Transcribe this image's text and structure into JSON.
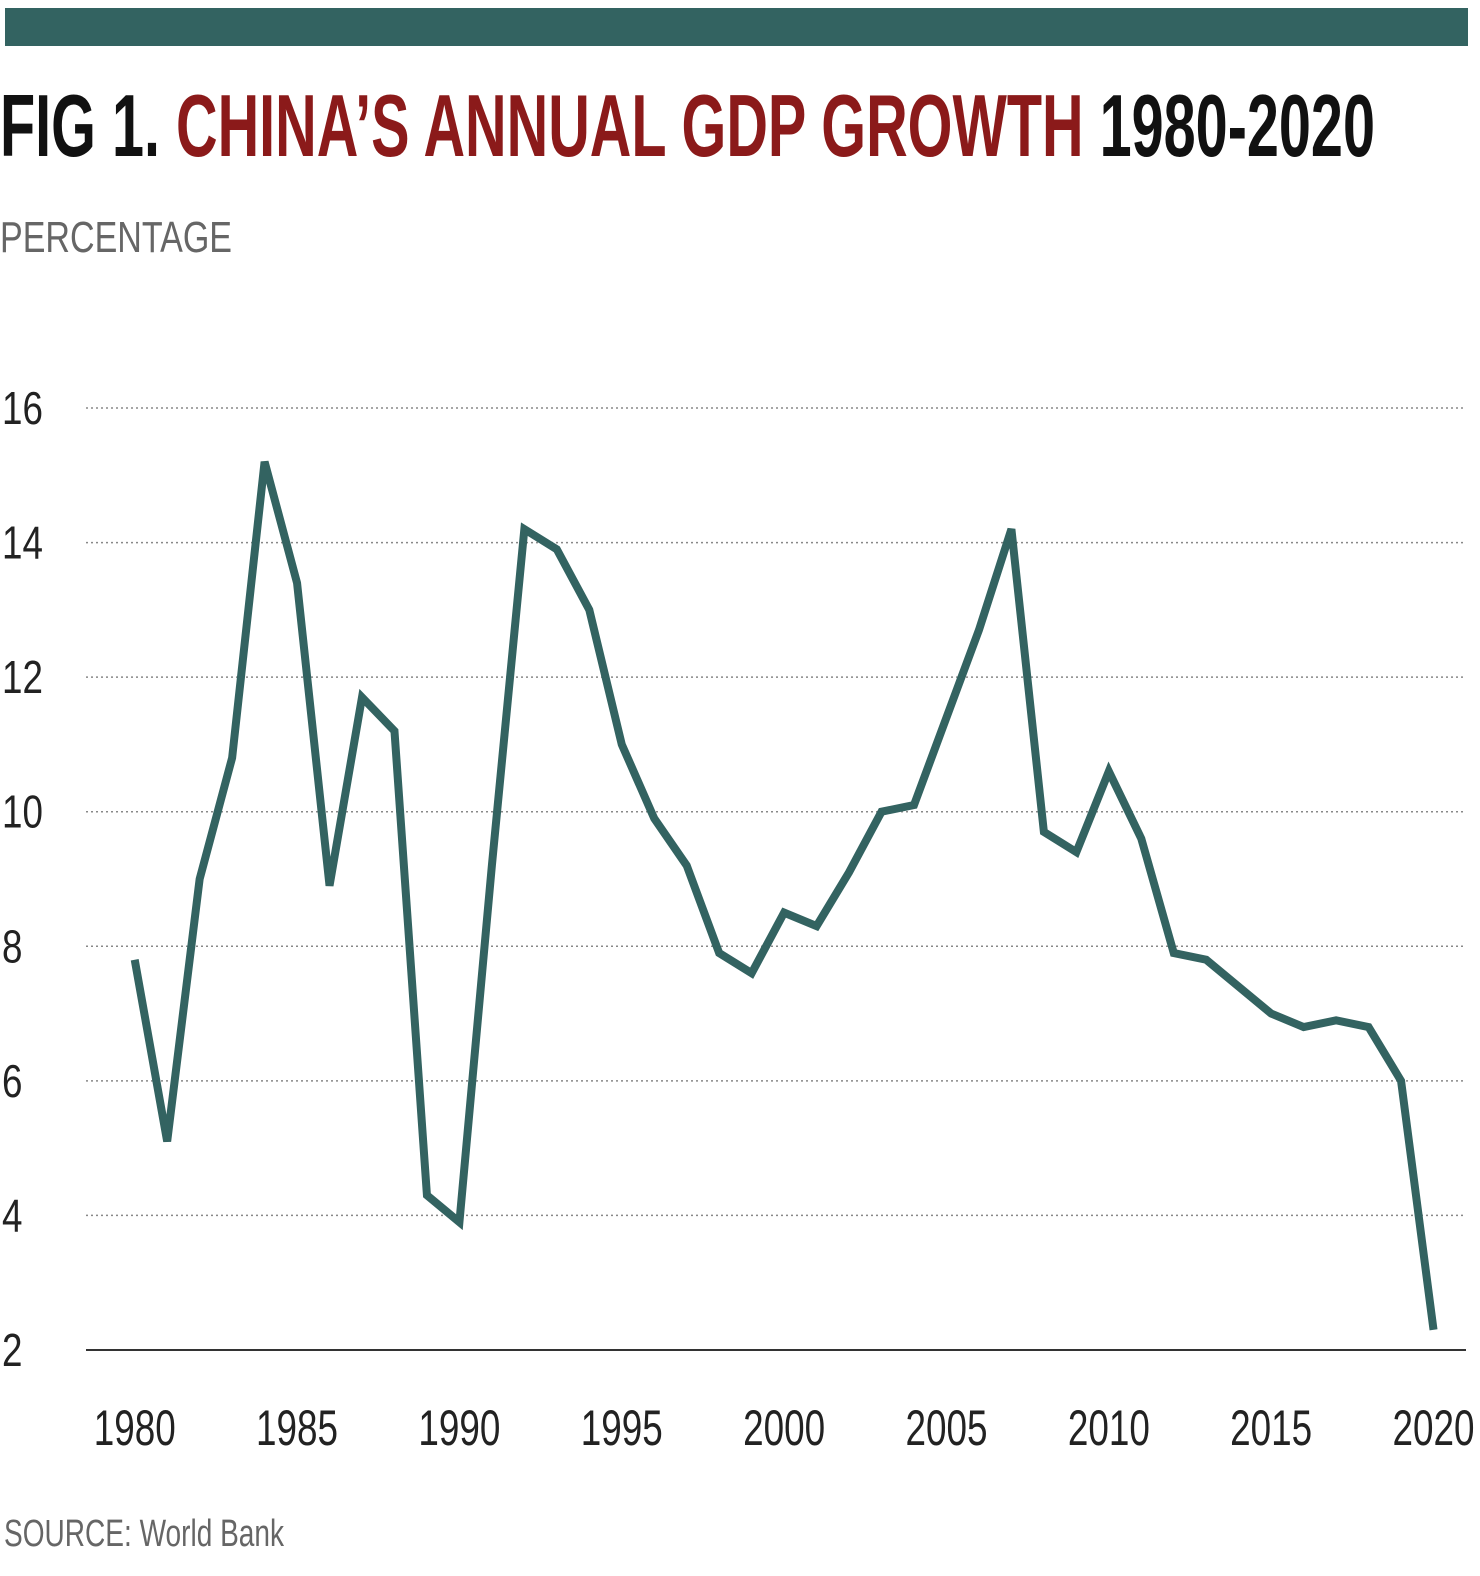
{
  "chart_data": {
    "type": "line",
    "title_parts": [
      "FIG 1.",
      "CHINA’S ANNUAL GDP GROWTH",
      "1980-2020"
    ],
    "y_axis_label": "PERCENTAGE",
    "source": "SOURCE: World Bank",
    "x": [
      1980,
      1981,
      1982,
      1983,
      1984,
      1985,
      1986,
      1987,
      1988,
      1989,
      1990,
      1991,
      1992,
      1993,
      1994,
      1995,
      1996,
      1997,
      1998,
      1999,
      2000,
      2001,
      2002,
      2003,
      2004,
      2005,
      2006,
      2007,
      2008,
      2009,
      2010,
      2011,
      2012,
      2013,
      2014,
      2015,
      2016,
      2017,
      2018,
      2019,
      2020
    ],
    "series": [
      {
        "name": "GDP growth",
        "color": "#336361",
        "values": [
          7.8,
          5.1,
          9.0,
          10.8,
          15.2,
          13.4,
          8.9,
          11.7,
          11.2,
          4.3,
          3.9,
          9.2,
          14.2,
          13.9,
          13.0,
          11.0,
          9.9,
          9.2,
          7.9,
          7.6,
          8.5,
          8.3,
          9.1,
          10.0,
          10.1,
          11.4,
          12.7,
          14.2,
          9.7,
          9.4,
          10.6,
          9.6,
          7.9,
          7.8,
          7.4,
          7.0,
          6.8,
          6.9,
          6.8,
          6.0,
          2.3
        ]
      }
    ],
    "xlim": [
      1978.5,
      2021
    ],
    "xticks": [
      1980,
      1985,
      1990,
      1995,
      2000,
      2005,
      2010,
      2015,
      2020
    ],
    "ylim": [
      2,
      16
    ],
    "yticks": [
      2,
      4,
      6,
      8,
      10,
      12,
      14,
      16
    ],
    "grid": true,
    "title_colors": [
      "#111111",
      "#8b1a1a",
      "#111111"
    ],
    "bar_color": "#336361"
  }
}
